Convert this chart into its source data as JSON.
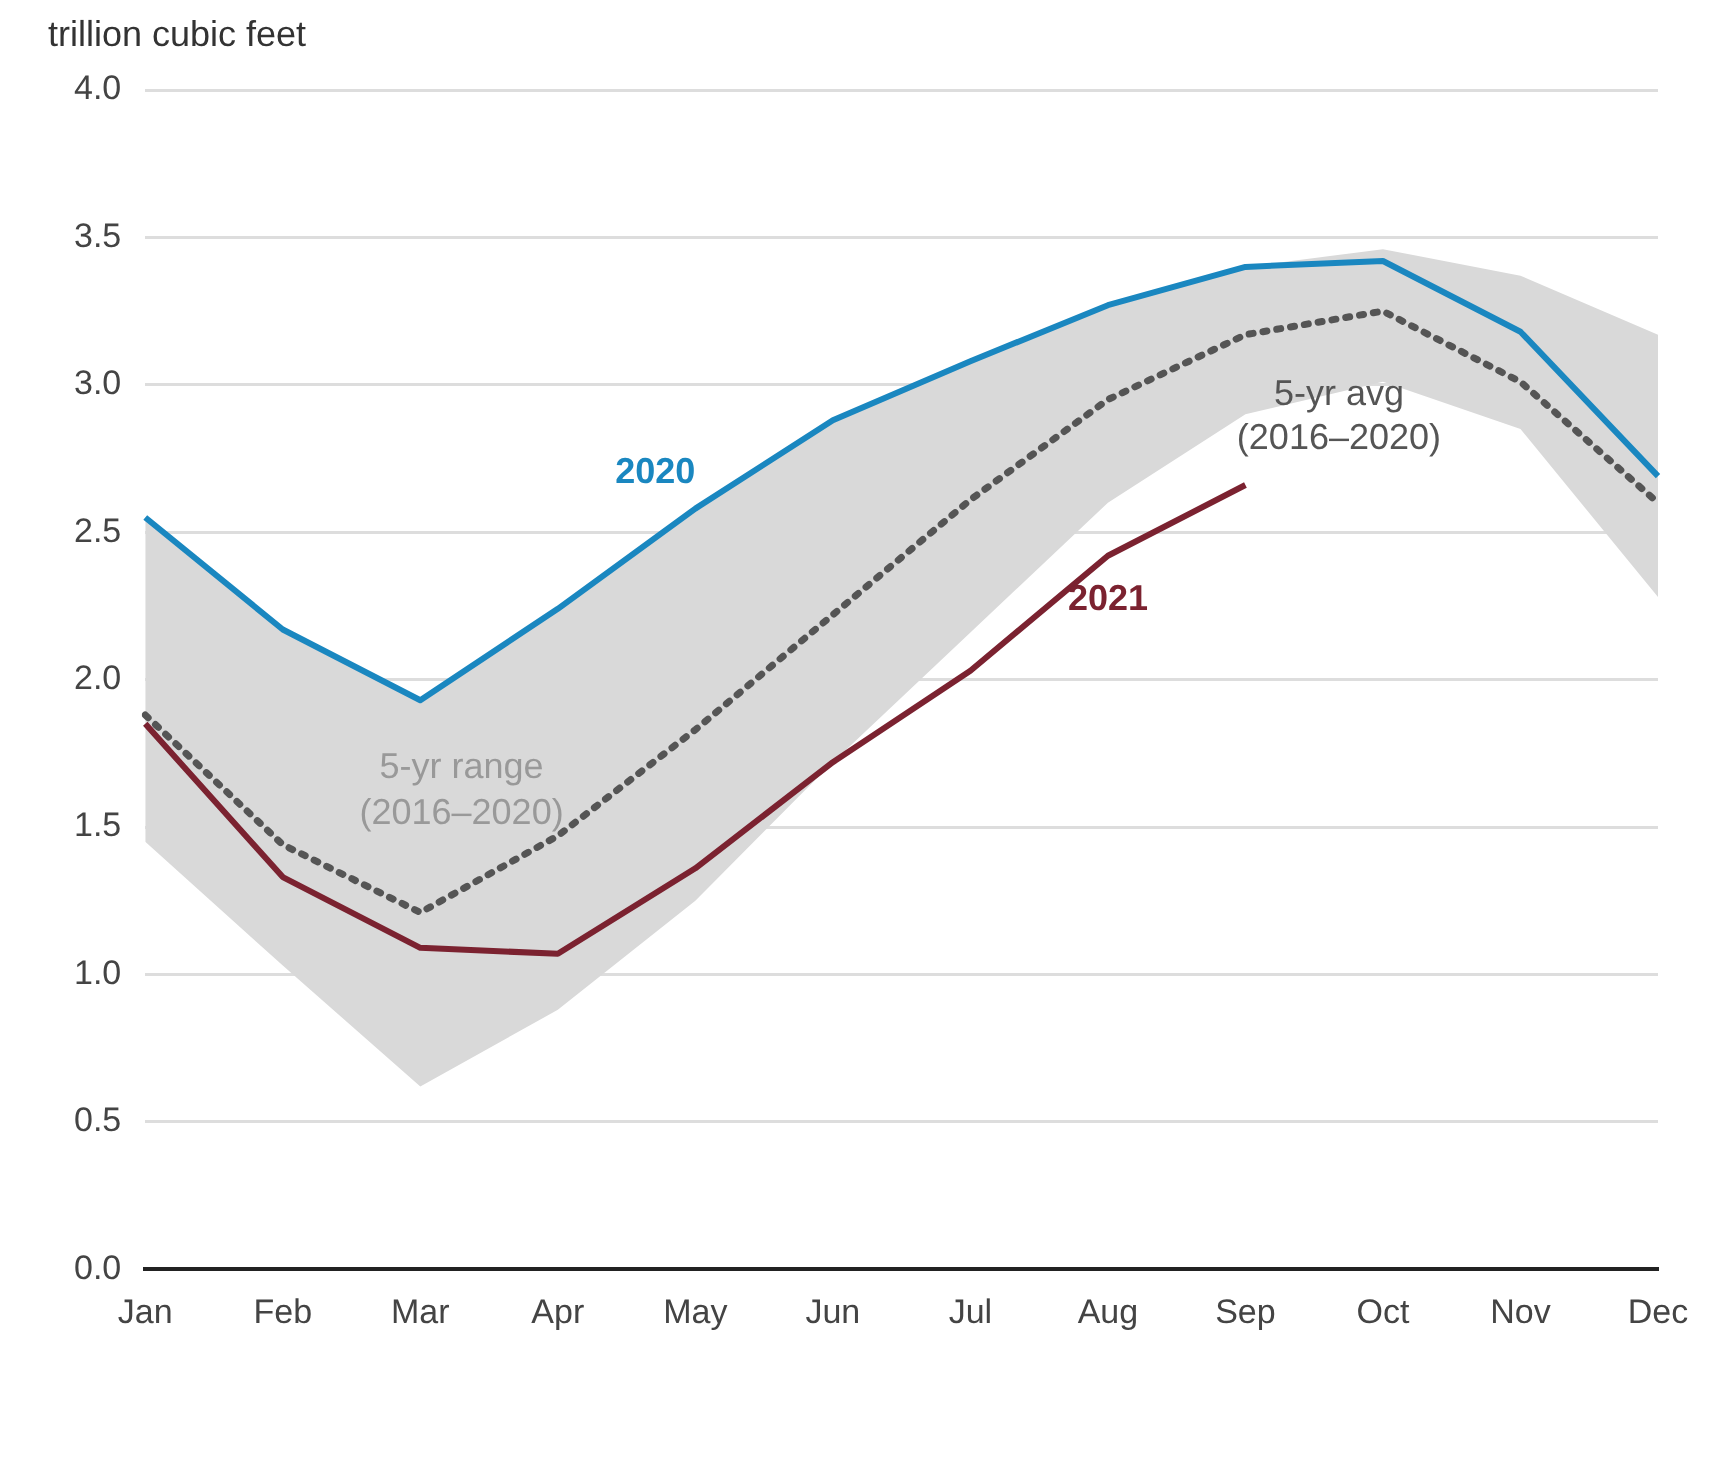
{
  "chart_data": {
    "type": "line",
    "ylabel": "trillion cubic feet",
    "categories": [
      "Jan",
      "Feb",
      "Mar",
      "Apr",
      "May",
      "Jun",
      "Jul",
      "Aug",
      "Sep",
      "Oct",
      "Nov",
      "Dec"
    ],
    "series": [
      {
        "name": "5-yr avg (2016–2020)",
        "color": "#555555",
        "line_style": "dotted",
        "values": [
          1.88,
          1.44,
          1.21,
          1.47,
          1.83,
          2.22,
          2.61,
          2.95,
          3.17,
          3.25,
          3.01,
          2.6
        ],
        "lower": [
          1.45,
          1.03,
          0.62,
          0.88,
          1.25,
          1.72,
          2.16,
          2.6,
          2.9,
          3.01,
          2.85,
          2.28
        ],
        "upper": [
          2.55,
          2.17,
          1.93,
          2.24,
          2.58,
          2.88,
          3.08,
          3.27,
          3.4,
          3.46,
          3.37,
          3.17
        ]
      },
      {
        "name": "2020",
        "color": "#1a87c0",
        "values": [
          2.55,
          2.17,
          1.93,
          2.24,
          2.58,
          2.88,
          3.08,
          3.27,
          3.4,
          3.42,
          3.18,
          2.69
        ]
      },
      {
        "name": "2021",
        "color": "#7b2230",
        "values": [
          1.85,
          1.33,
          1.09,
          1.07,
          1.36,
          1.72,
          2.03,
          2.42,
          2.66,
          null,
          null,
          null
        ]
      }
    ],
    "ylim": [
      0,
      4
    ],
    "yticks": [
      {
        "value": 0,
        "label": "0.0"
      },
      {
        "value": 0.5,
        "label": "0.5"
      },
      {
        "value": 1,
        "label": "1.0"
      },
      {
        "value": 1.5,
        "label": "1.5"
      },
      {
        "value": 2,
        "label": "2.0"
      },
      {
        "value": 2.5,
        "label": "2.5"
      },
      {
        "value": 3,
        "label": "3.0"
      },
      {
        "value": 3.5,
        "label": "3.5"
      },
      {
        "value": 4,
        "label": "4.0"
      }
    ],
    "grid": "y",
    "legend": false,
    "marker": "none",
    "annotations": [
      "5-yr range (2016–2020)"
    ]
  }
}
